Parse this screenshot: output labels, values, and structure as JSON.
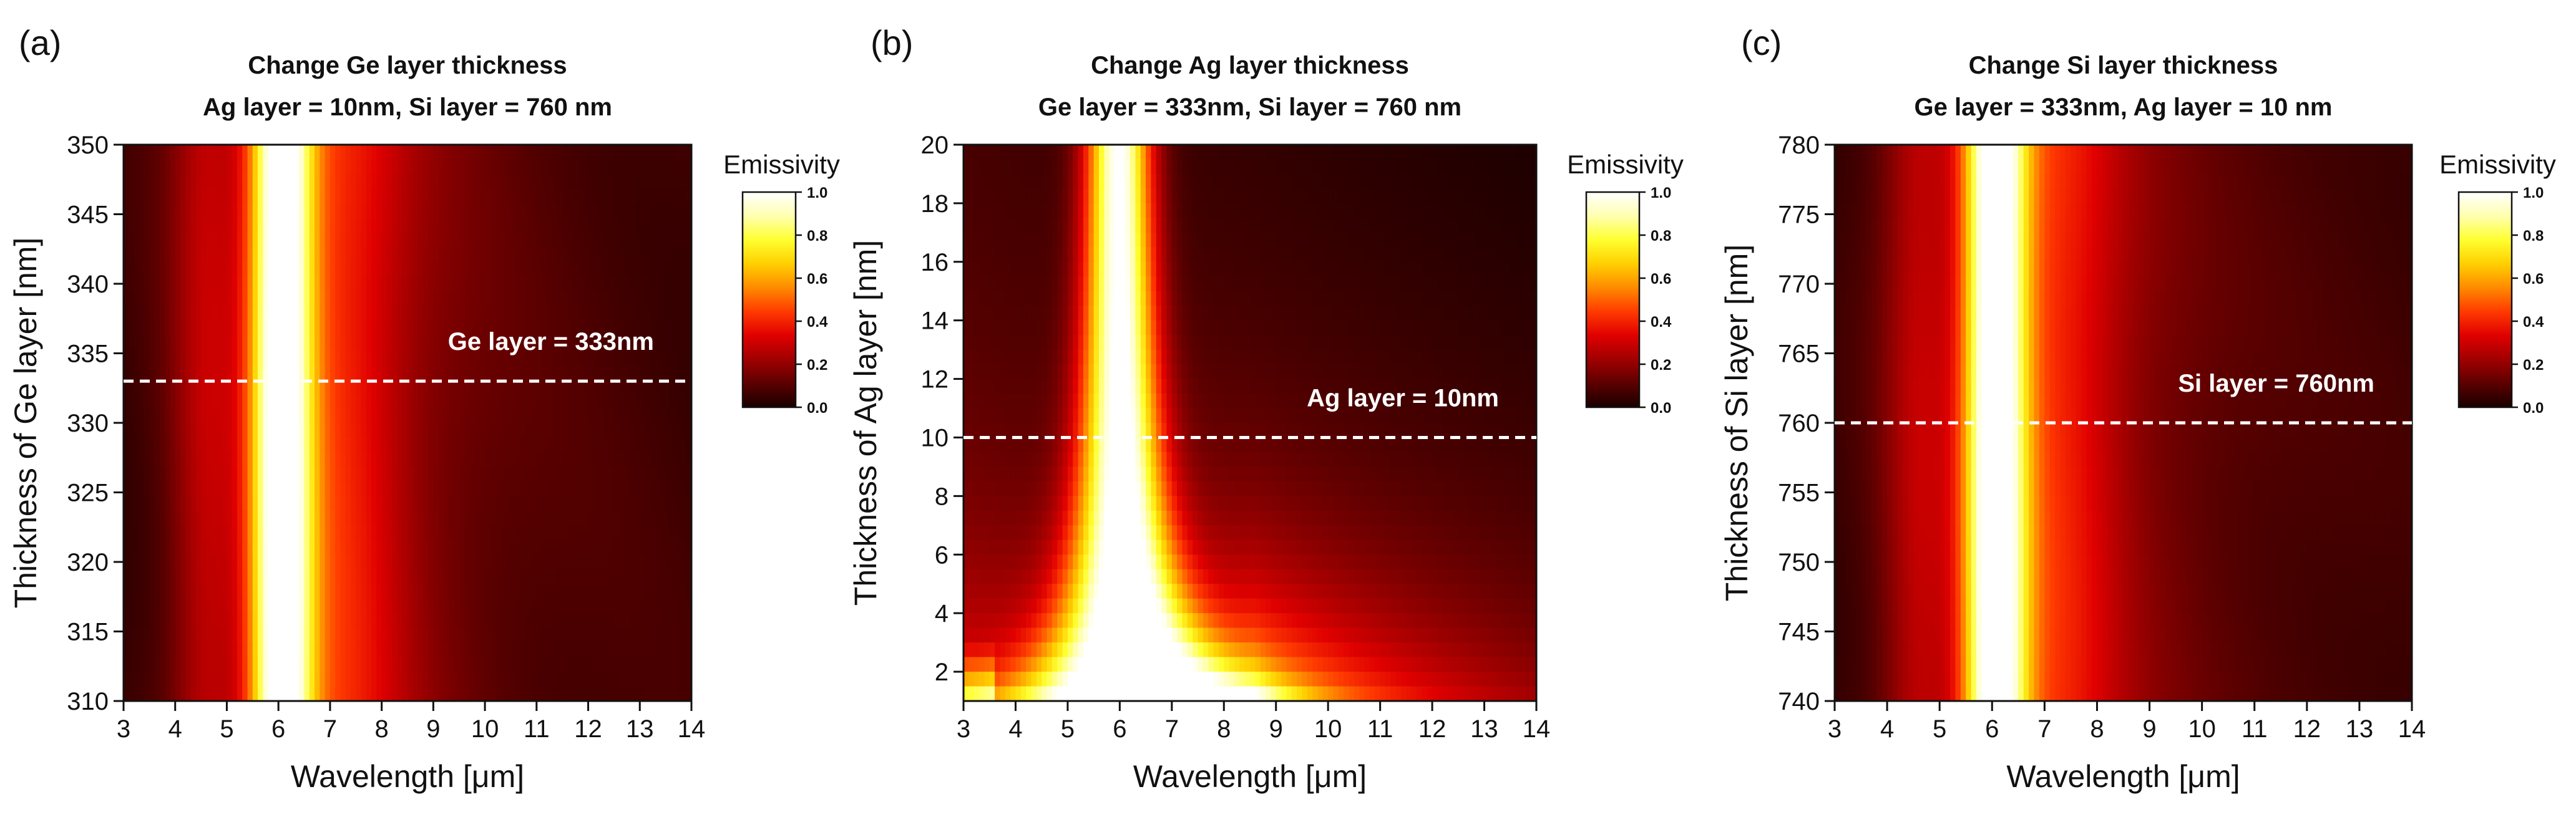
{
  "colorbar": {
    "label": "Emissivity",
    "ticks": [
      0.0,
      0.2,
      0.4,
      0.6,
      0.8,
      1.0
    ],
    "tick_labels": [
      "0.0",
      "0.2",
      "0.4",
      "0.6",
      "0.8",
      "1.0"
    ],
    "colormap": [
      "#1a0000",
      "#5c0000",
      "#a00000",
      "#e00000",
      "#ff3a00",
      "#ff8a00",
      "#ffd000",
      "#ffff30",
      "#ffffb0",
      "#ffffff"
    ]
  },
  "chart_data": [
    {
      "type": "heatmap",
      "panel": "(a)",
      "title": "Change Ge layer thickness",
      "subtitle": "Ag layer = 10nm, Si layer = 760 nm",
      "xlabel": "Wavelength [μm]",
      "ylabel": "Thickness of Ge layer [nm]",
      "xlim": [
        3,
        14
      ],
      "ylim": [
        310,
        350
      ],
      "xticks": [
        3,
        4,
        5,
        6,
        7,
        8,
        9,
        10,
        11,
        12,
        13,
        14
      ],
      "yticks": [
        310,
        315,
        320,
        325,
        330,
        335,
        340,
        345,
        350
      ],
      "reference_line": {
        "value": 333,
        "label": "Ge layer = 333nm"
      },
      "color_value": "Emissivity",
      "model": "ge",
      "peak_wavelength_um": 6.0
    },
    {
      "type": "heatmap",
      "panel": "(b)",
      "title": "Change Ag layer thickness",
      "subtitle": "Ge layer = 333nm, Si layer = 760 nm",
      "xlabel": "Wavelength [μm]",
      "ylabel": "Thickness of Ag layer [nm]",
      "xlim": [
        3,
        14
      ],
      "ylim": [
        1,
        20
      ],
      "xticks": [
        3,
        4,
        5,
        6,
        7,
        8,
        9,
        10,
        11,
        12,
        13,
        14
      ],
      "yticks": [
        2,
        4,
        6,
        8,
        10,
        12,
        14,
        16,
        18,
        20
      ],
      "reference_line": {
        "value": 10,
        "label": "Ag layer = 10nm"
      },
      "color_value": "Emissivity",
      "model": "ag",
      "peak_wavelength_um": 6.0
    },
    {
      "type": "heatmap",
      "panel": "(c)",
      "title": "Change Si layer thickness",
      "subtitle": "Ge layer = 333nm, Ag layer = 10 nm",
      "xlabel": "Wavelength [μm]",
      "ylabel": "Thickness of Si layer [nm]",
      "xlim": [
        3,
        14
      ],
      "ylim": [
        740,
        780
      ],
      "xticks": [
        3,
        4,
        5,
        6,
        7,
        8,
        9,
        10,
        11,
        12,
        13,
        14
      ],
      "yticks": [
        740,
        745,
        750,
        755,
        760,
        765,
        770,
        775,
        780
      ],
      "reference_line": {
        "value": 760,
        "label": "Si layer = 760nm"
      },
      "color_value": "Emissivity",
      "model": "si",
      "peak_wavelength_um": 6.0
    }
  ]
}
